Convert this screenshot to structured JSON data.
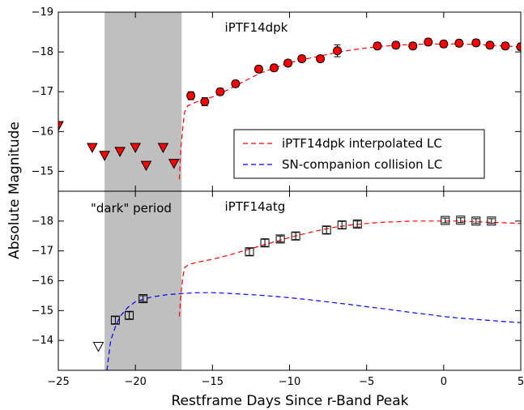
{
  "chart_data": {
    "type": "scatter",
    "xlabel": "Restframe Days Since r-Band Peak",
    "ylabel": "Absolute Magnitude",
    "xlim": [
      -25,
      5
    ],
    "xticks": [
      -25,
      -20,
      -15,
      -10,
      -5,
      0,
      5
    ],
    "xtick_labels": [
      "−25",
      "−20",
      "−15",
      "−10",
      "−5",
      "0",
      "5"
    ],
    "shaded_region": {
      "x": [
        -22,
        -17
      ],
      "color": "#bfbfbf",
      "label": "\"dark\" period"
    },
    "legend": {
      "placement": "lower-right of top panel",
      "entries": [
        {
          "label": "iPTF14dpk interpolated LC",
          "color": "#ff0000",
          "style": "dashed"
        },
        {
          "label": "SN-companion collision LC",
          "color": "#0000ff",
          "style": "dashed"
        }
      ]
    },
    "panels": [
      {
        "title": "iPTF14dpk",
        "ylim": [
          -14.5,
          -19
        ],
        "yticks": [
          -15,
          -16,
          -17,
          -18,
          -19
        ],
        "ytick_labels": [
          "−15",
          "−16",
          "−17",
          "−18",
          "−19"
        ],
        "series": [
          {
            "kind": "upper-limit",
            "marker": "triangle-down",
            "color": "#ff0000",
            "points": [
              [
                -25,
                -16.15
              ],
              [
                -22.8,
                -15.6
              ],
              [
                -22,
                -15.4
              ],
              [
                -21,
                -15.5
              ],
              [
                -20,
                -15.6
              ],
              [
                -19.3,
                -15.15
              ],
              [
                -18.2,
                -15.6
              ],
              [
                -17.5,
                -15.2
              ]
            ]
          },
          {
            "kind": "detection",
            "marker": "circle",
            "color": "#ff0000",
            "points": [
              {
                "x": -16.4,
                "y": -16.9,
                "err": 0.1
              },
              {
                "x": -15.5,
                "y": -16.75,
                "err": 0.1
              },
              {
                "x": -14.5,
                "y": -17.0,
                "err": 0.08
              },
              {
                "x": -13.5,
                "y": -17.2,
                "err": 0.08
              },
              {
                "x": -12.0,
                "y": -17.57,
                "err": 0.08
              },
              {
                "x": -11.0,
                "y": -17.6,
                "err": 0.08
              },
              {
                "x": -10.1,
                "y": -17.72,
                "err": 0.08
              },
              {
                "x": -9.2,
                "y": -17.83,
                "err": 0.08
              },
              {
                "x": -8.0,
                "y": -17.83,
                "err": 0.08
              },
              {
                "x": -6.9,
                "y": -18.03,
                "err": 0.15
              },
              {
                "x": -4.3,
                "y": -18.15,
                "err": 0.08
              },
              {
                "x": -3.1,
                "y": -18.17,
                "err": 0.08
              },
              {
                "x": -2.0,
                "y": -18.15,
                "err": 0.08
              },
              {
                "x": -1.0,
                "y": -18.25,
                "err": 0.08
              },
              {
                "x": 0.0,
                "y": -18.2,
                "err": 0.08
              },
              {
                "x": 1.0,
                "y": -18.22,
                "err": 0.08
              },
              {
                "x": 2.1,
                "y": -18.23,
                "err": 0.08
              },
              {
                "x": 3.0,
                "y": -18.17,
                "err": 0.08
              },
              {
                "x": 4.0,
                "y": -18.15,
                "err": 0.08
              },
              {
                "x": 5.0,
                "y": -18.13,
                "err": 0.08
              }
            ]
          },
          {
            "kind": "line",
            "name": "iPTF14dpk interpolated LC",
            "style": "dashed",
            "color": "#ff0000",
            "points": [
              [
                -17.15,
                -14.8
              ],
              [
                -17.05,
                -15.6
              ],
              [
                -17.0,
                -15.8
              ],
              [
                -16.9,
                -16.2
              ],
              [
                -16.8,
                -16.5
              ],
              [
                -16.6,
                -16.65
              ],
              [
                -16.0,
                -16.75
              ],
              [
                -15.0,
                -16.87
              ],
              [
                -14.0,
                -17.05
              ],
              [
                -13.0,
                -17.25
              ],
              [
                -12.0,
                -17.45
              ],
              [
                -11.0,
                -17.6
              ],
              [
                -10.0,
                -17.73
              ],
              [
                -9.0,
                -17.82
              ],
              [
                -8.0,
                -17.9
              ],
              [
                -7.0,
                -17.98
              ],
              [
                -6.0,
                -18.05
              ],
              [
                -5.0,
                -18.1
              ],
              [
                -4.0,
                -18.14
              ],
              [
                -3.0,
                -18.17
              ],
              [
                -2.0,
                -18.19
              ],
              [
                -1.0,
                -18.2
              ],
              [
                0.0,
                -18.2
              ],
              [
                1.0,
                -18.2
              ],
              [
                2.0,
                -18.19
              ],
              [
                3.0,
                -18.17
              ],
              [
                4.0,
                -18.15
              ],
              [
                5.0,
                -18.12
              ]
            ]
          }
        ]
      },
      {
        "title": "iPTF14atg",
        "ylim": [
          -13,
          -19
        ],
        "yticks": [
          -14,
          -15,
          -16,
          -17,
          -18
        ],
        "ytick_labels": [
          "−14",
          "−15",
          "−16",
          "−17",
          "−18"
        ],
        "series": [
          {
            "kind": "upper-limit",
            "marker": "triangle-down-open",
            "color": "#000000",
            "points": [
              [
                -22.4,
                -13.8
              ]
            ]
          },
          {
            "kind": "detection",
            "marker": "square-open",
            "color": "#000000",
            "points": [
              {
                "x": -21.3,
                "y": -14.68,
                "err": 0.12
              },
              {
                "x": -20.4,
                "y": -14.84,
                "err": 0.12
              },
              {
                "x": -19.5,
                "y": -15.4,
                "err": 0.1
              },
              {
                "x": -12.6,
                "y": -16.97,
                "err": 0.12
              },
              {
                "x": -11.6,
                "y": -17.27,
                "err": 0.12
              },
              {
                "x": -10.6,
                "y": -17.4,
                "err": 0.1
              },
              {
                "x": -9.6,
                "y": -17.5,
                "err": 0.12
              },
              {
                "x": -7.6,
                "y": -17.7,
                "err": 0.12
              },
              {
                "x": -6.6,
                "y": -17.87,
                "err": 0.12
              },
              {
                "x": -5.6,
                "y": -17.9,
                "err": 0.1
              },
              {
                "x": 0.1,
                "y": -18.02,
                "err": 0.08
              },
              {
                "x": 1.1,
                "y": -18.03,
                "err": 0.08
              },
              {
                "x": 2.1,
                "y": -18.0,
                "err": 0.08
              },
              {
                "x": 3.1,
                "y": -18.0,
                "err": 0.08
              }
            ]
          },
          {
            "kind": "line",
            "name": "iPTF14dpk interpolated LC",
            "style": "dashed",
            "color": "#ff0000",
            "points": [
              [
                -17.15,
                -14.8
              ],
              [
                -17.05,
                -15.5
              ],
              [
                -17.0,
                -15.8
              ],
              [
                -16.9,
                -16.2
              ],
              [
                -16.8,
                -16.45
              ],
              [
                -16.5,
                -16.55
              ],
              [
                -16.0,
                -16.62
              ],
              [
                -15.0,
                -16.72
              ],
              [
                -14.0,
                -16.85
              ],
              [
                -13.0,
                -17.0
              ],
              [
                -12.0,
                -17.15
              ],
              [
                -11.0,
                -17.3
              ],
              [
                -10.0,
                -17.45
              ],
              [
                -9.0,
                -17.58
              ],
              [
                -8.0,
                -17.7
              ],
              [
                -7.0,
                -17.8
              ],
              [
                -6.0,
                -17.87
              ],
              [
                -5.0,
                -17.92
              ],
              [
                -4.0,
                -17.96
              ],
              [
                -3.0,
                -17.98
              ],
              [
                -2.0,
                -18.0
              ],
              [
                -1.0,
                -18.0
              ],
              [
                0.0,
                -18.0
              ],
              [
                1.0,
                -18.0
              ],
              [
                2.0,
                -17.98
              ],
              [
                3.0,
                -17.96
              ],
              [
                4.0,
                -17.94
              ],
              [
                5.0,
                -17.92
              ]
            ]
          },
          {
            "kind": "line",
            "name": "SN-companion collision LC",
            "style": "dashed",
            "color": "#0000ff",
            "points": [
              [
                -21.85,
                -13.0
              ],
              [
                -21.6,
                -14.0
              ],
              [
                -21.3,
                -14.45
              ],
              [
                -21.0,
                -14.8
              ],
              [
                -20.5,
                -15.1
              ],
              [
                -20.0,
                -15.3
              ],
              [
                -19.0,
                -15.45
              ],
              [
                -18.0,
                -15.53
              ],
              [
                -17.0,
                -15.57
              ],
              [
                -16.0,
                -15.6
              ],
              [
                -15.0,
                -15.6
              ],
              [
                -14.0,
                -15.58
              ],
              [
                -13.0,
                -15.55
              ],
              [
                -12.0,
                -15.52
              ],
              [
                -11.0,
                -15.48
              ],
              [
                -10.0,
                -15.43
              ],
              [
                -9.0,
                -15.38
              ],
              [
                -8.0,
                -15.32
              ],
              [
                -7.0,
                -15.26
              ],
              [
                -6.0,
                -15.2
              ],
              [
                -5.0,
                -15.13
              ],
              [
                -4.0,
                -15.07
              ],
              [
                -3.0,
                -15.0
              ],
              [
                -2.0,
                -14.93
              ],
              [
                -1.0,
                -14.87
              ],
              [
                0.0,
                -14.8
              ],
              [
                1.0,
                -14.75
              ],
              [
                2.0,
                -14.71
              ],
              [
                3.0,
                -14.67
              ],
              [
                4.0,
                -14.63
              ],
              [
                5.0,
                -14.6
              ]
            ]
          }
        ]
      }
    ]
  }
}
